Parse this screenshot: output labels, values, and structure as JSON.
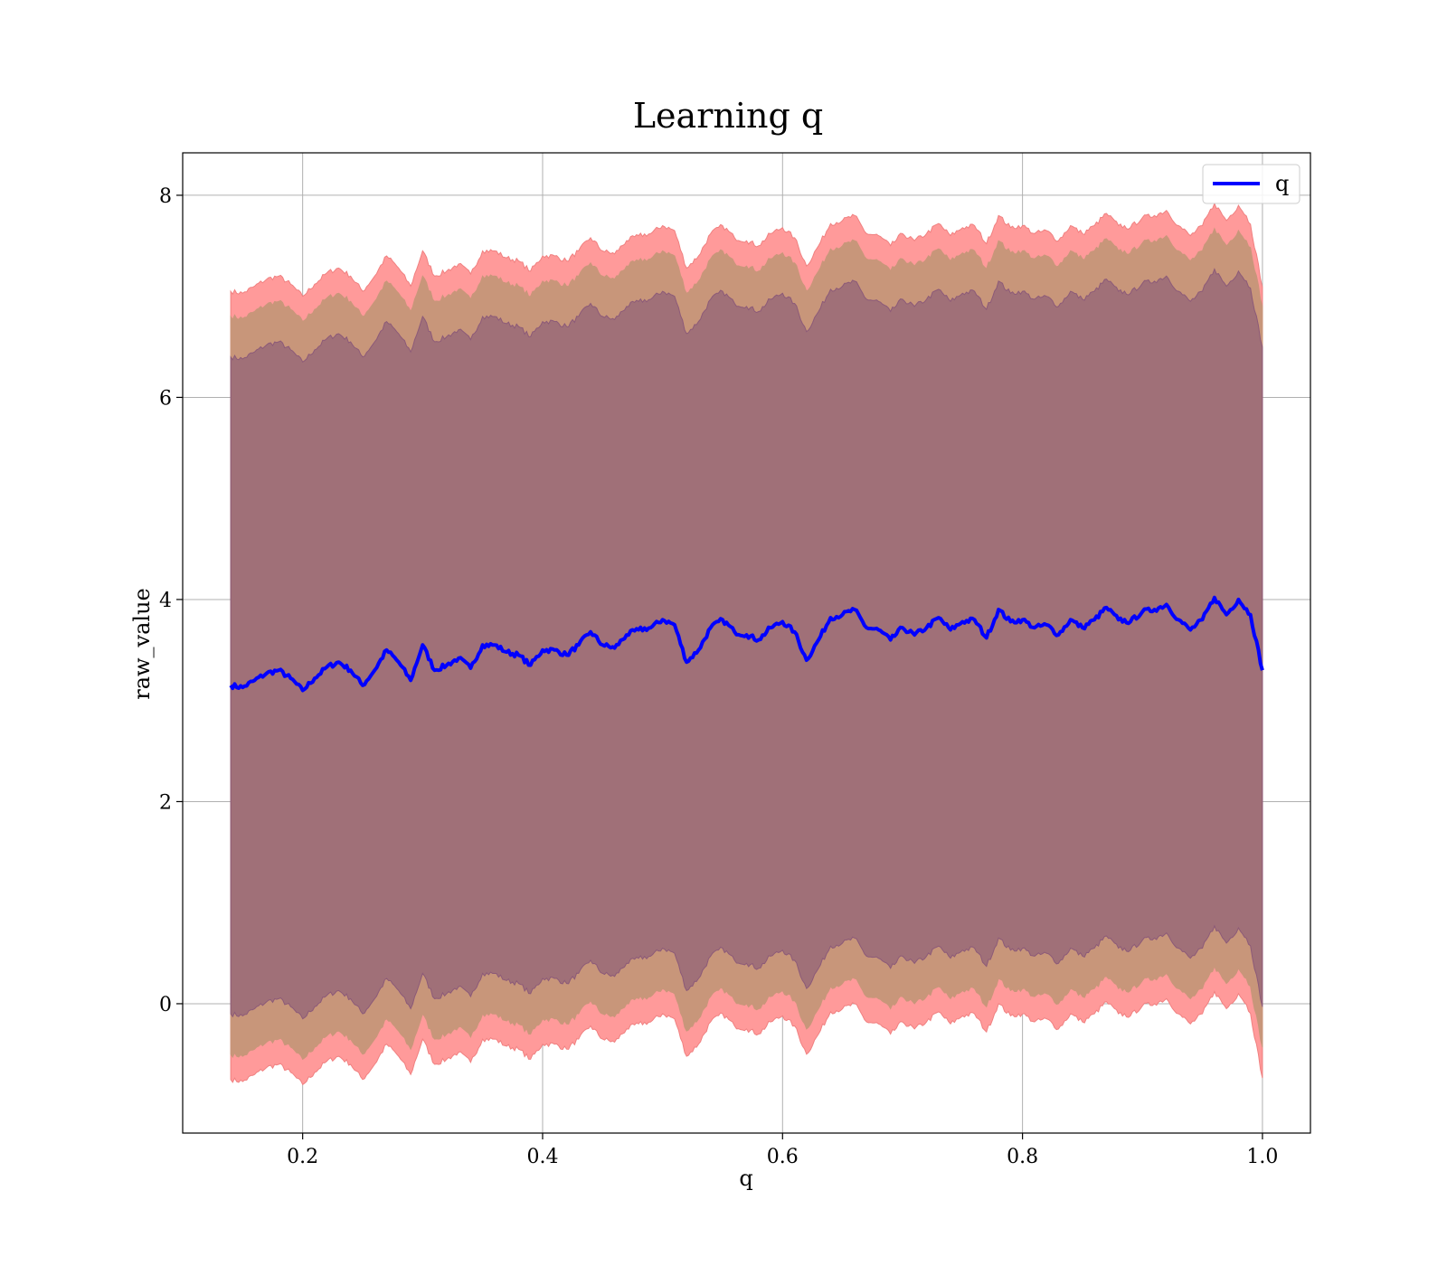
{
  "chart_data": {
    "type": "line",
    "title": "Learning q",
    "xlabel": "q",
    "ylabel": "raw_value",
    "xlim": [
      0.1,
      1.04
    ],
    "ylim": [
      -1.28,
      8.42
    ],
    "xticks": [
      0.2,
      0.4,
      0.6,
      0.8,
      1.0
    ],
    "xtick_labels": [
      "0.2",
      "0.4",
      "0.6",
      "0.8",
      "1.0"
    ],
    "yticks": [
      0,
      2,
      4,
      6,
      8
    ],
    "ytick_labels": [
      "0",
      "2",
      "4",
      "6",
      "8"
    ],
    "grid": true,
    "legend": {
      "position": "top-right",
      "entries": [
        "q"
      ]
    },
    "colors": {
      "line": "#0000ff",
      "band_outer": "#ff9a9a",
      "band_middle": "#c8967a",
      "band_inner": "#a07078",
      "band_inner_edge": "#8c5a78",
      "band_outer_edge": "#f08080"
    },
    "series": [
      {
        "name": "q",
        "x": [
          0.14,
          0.15,
          0.16,
          0.17,
          0.18,
          0.19,
          0.2,
          0.21,
          0.22,
          0.23,
          0.24,
          0.25,
          0.26,
          0.27,
          0.28,
          0.29,
          0.3,
          0.31,
          0.32,
          0.33,
          0.34,
          0.35,
          0.36,
          0.37,
          0.38,
          0.39,
          0.4,
          0.41,
          0.42,
          0.43,
          0.44,
          0.45,
          0.46,
          0.47,
          0.48,
          0.49,
          0.5,
          0.51,
          0.52,
          0.53,
          0.54,
          0.55,
          0.56,
          0.57,
          0.58,
          0.59,
          0.6,
          0.61,
          0.62,
          0.63,
          0.64,
          0.65,
          0.66,
          0.67,
          0.68,
          0.69,
          0.7,
          0.71,
          0.72,
          0.73,
          0.74,
          0.75,
          0.76,
          0.77,
          0.78,
          0.79,
          0.8,
          0.81,
          0.82,
          0.83,
          0.84,
          0.85,
          0.86,
          0.87,
          0.88,
          0.89,
          0.9,
          0.91,
          0.92,
          0.93,
          0.94,
          0.95,
          0.96,
          0.97,
          0.98,
          0.99,
          1.0
        ],
        "y": [
          3.15,
          3.13,
          3.2,
          3.27,
          3.3,
          3.22,
          3.1,
          3.22,
          3.33,
          3.38,
          3.3,
          3.15,
          3.3,
          3.5,
          3.38,
          3.2,
          3.55,
          3.3,
          3.35,
          3.42,
          3.32,
          3.55,
          3.55,
          3.48,
          3.45,
          3.35,
          3.5,
          3.5,
          3.45,
          3.55,
          3.68,
          3.55,
          3.52,
          3.65,
          3.7,
          3.72,
          3.8,
          3.75,
          3.38,
          3.5,
          3.72,
          3.8,
          3.68,
          3.65,
          3.6,
          3.72,
          3.78,
          3.68,
          3.4,
          3.6,
          3.82,
          3.85,
          3.9,
          3.72,
          3.7,
          3.6,
          3.72,
          3.65,
          3.72,
          3.82,
          3.7,
          3.78,
          3.8,
          3.62,
          3.9,
          3.78,
          3.8,
          3.72,
          3.75,
          3.65,
          3.8,
          3.72,
          3.8,
          3.92,
          3.8,
          3.78,
          3.88,
          3.9,
          3.95,
          3.8,
          3.7,
          3.8,
          4.02,
          3.85,
          4.0,
          3.85,
          3.3
        ]
      }
    ],
    "bands": [
      {
        "name": "",
        "half_width": 3.9
      },
      {
        "name": "",
        "half_width": 3.65
      },
      {
        "name": "",
        "half_width": 3.25
      }
    ]
  }
}
